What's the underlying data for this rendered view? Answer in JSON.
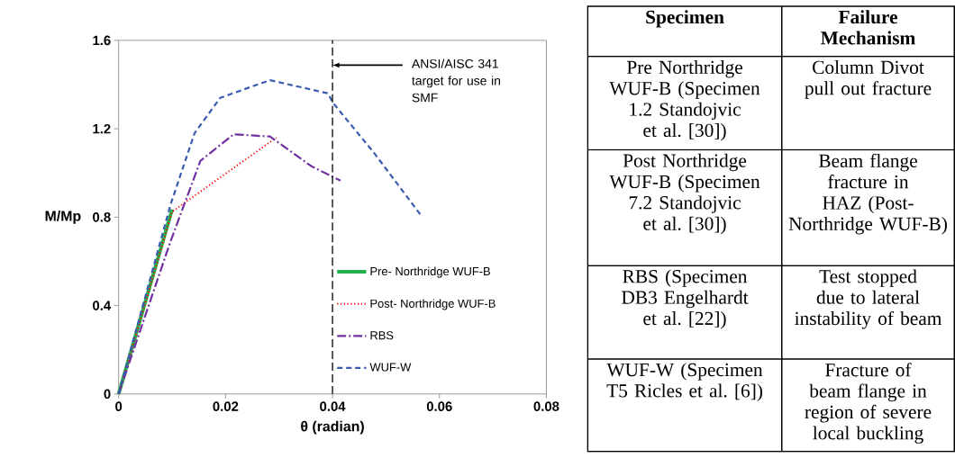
{
  "chart_data": [
    {
      "type": "line",
      "xlabel": "θ (radian)",
      "ylabel": "M/Mp",
      "xlim": [
        0,
        0.08
      ],
      "xticks": [
        0,
        0.02,
        0.04,
        0.06,
        0.08
      ],
      "ylim": [
        0,
        1.6
      ],
      "yticks": [
        0,
        0.4,
        0.8,
        1.2,
        1.6
      ],
      "grid": false,
      "legend": "bottom right",
      "marker": "none",
      "ref_lines": [
        {
          "axis": "x",
          "value": 0.04,
          "label": "ANSI/AISC 341 target for use in SMF",
          "color": "#000000",
          "line_style": "dashed"
        }
      ],
      "series": [
        {
          "name": "Pre- Northridge WUF-B",
          "color": "#22b04c",
          "line_style": "solid",
          "x": [
            0,
            0.01
          ],
          "values": [
            0,
            0.835
          ]
        },
        {
          "name": "Post- Northridge WUF-B",
          "color": "#ff0000",
          "line_style": "dotted",
          "x": [
            0,
            0.01,
            0.0295
          ],
          "values": [
            0,
            0.825,
            1.16
          ]
        },
        {
          "name": "RBS",
          "color": "#7030a0",
          "line_style": "dashdot",
          "x": [
            0,
            0.0097,
            0.0153,
            0.0215,
            0.0283,
            0.0361,
            0.0415
          ],
          "values": [
            0,
            0.69,
            1.055,
            1.175,
            1.165,
            1.03,
            0.965
          ]
        },
        {
          "name": "WUF-W",
          "color": "#3a5bb0",
          "line_style": "dashed",
          "x": [
            0,
            0.0097,
            0.0142,
            0.019,
            0.0283,
            0.0392,
            0.04,
            0.0478,
            0.0568
          ],
          "values": [
            0,
            0.856,
            1.18,
            1.34,
            1.42,
            1.36,
            1.32,
            1.09,
            0.8
          ]
        }
      ]
    },
    {
      "type": "other",
      "annotations": [
        "Specimen",
        "Failure Mechanism",
        "Pre Northridge WUF-B (Specimen 1.2 Standojvic et al. [30])",
        "Column Divot pull out fracture",
        "Post Northridge WUF-B (Specimen 7.2 Standojvic et al. [30])",
        "Beam flange fracture in HAZ (Post-Northridge WUF-B)",
        "RBS (Specimen DB3 Engelhardt et al. [22])",
        "Test stopped due to lateral instability of beam",
        "WUF-W (Specimen T5 Ricles et al. [6])",
        "Fracture of beam flange in region of severe local buckling"
      ]
    }
  ]
}
